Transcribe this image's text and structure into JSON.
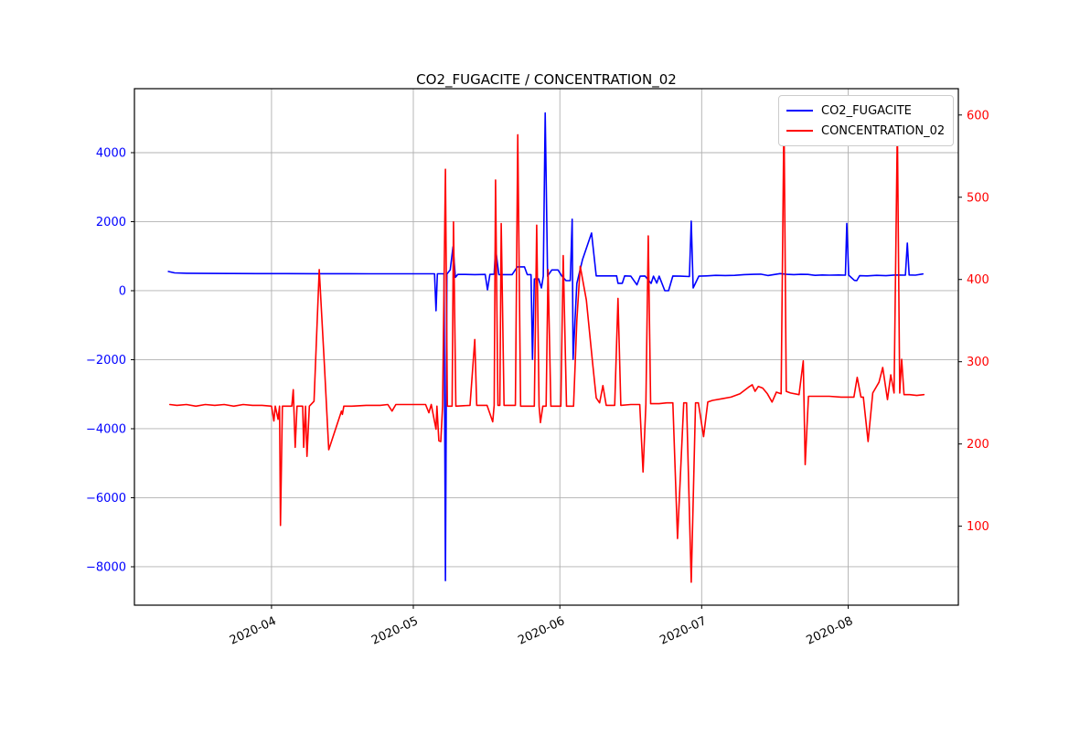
{
  "figure": {
    "title": "CO2_FUGACITE / CONCENTRATION_02",
    "background": "#ffffff"
  },
  "legend": {
    "items": [
      {
        "label": "CO2_FUGACITE",
        "color": "#0000ff"
      },
      {
        "label": "CONCENTRATION_02",
        "color": "#ff0000"
      }
    ]
  },
  "chart_data": {
    "type": "line",
    "title": "CO2_FUGACITE / CONCENTRATION_02",
    "grid": true,
    "grid_color": "#b0b0b0",
    "spine_color": "#000000",
    "legend_position": "upper right",
    "x_axis": {
      "unit": "days since 2020-03-01",
      "range": [
        2,
        176.3
      ],
      "ticks": [
        31,
        61,
        92,
        122,
        153
      ],
      "tick_labels": [
        "2020-04",
        "2020-05",
        "2020-06",
        "2020-07",
        "2020-08"
      ],
      "tick_label_color": "#000000",
      "tick_label_rotation_deg": -25
    },
    "y_axis_left": {
      "series": "CO2_FUGACITE",
      "color": "#0000ff",
      "range": [
        -9113,
        5854
      ],
      "ticks": [
        4000,
        2000,
        0,
        -2000,
        -4000,
        -6000,
        -8000
      ],
      "tick_labels": [
        "4000",
        "2000",
        "0",
        "−2000",
        "−4000",
        "−6000",
        "−8000"
      ]
    },
    "y_axis_right": {
      "series": "CONCENTRATION_02",
      "color": "#ff0000",
      "range": [
        4,
        632
      ],
      "ticks": [
        600,
        500,
        400,
        300,
        200,
        100
      ],
      "tick_labels": [
        "600",
        "500",
        "400",
        "300",
        "200",
        "100"
      ]
    },
    "series": [
      {
        "name": "CO2_FUGACITE",
        "color": "#0000ff",
        "axis": "left",
        "linewidth": 1.6,
        "points": [
          [
            9.2,
            555
          ],
          [
            10.5,
            515
          ],
          [
            13,
            505
          ],
          [
            17,
            500
          ],
          [
            22,
            497
          ],
          [
            28,
            495
          ],
          [
            34,
            494
          ],
          [
            40,
            493
          ],
          [
            46,
            492
          ],
          [
            52,
            491
          ],
          [
            58,
            490
          ],
          [
            63,
            490
          ],
          [
            65.5,
            490
          ],
          [
            65.8,
            -580
          ],
          [
            66.1,
            490
          ],
          [
            67.5,
            490
          ],
          [
            67.8,
            -8400
          ],
          [
            68.1,
            485
          ],
          [
            68.8,
            600
          ],
          [
            69.4,
            1270
          ],
          [
            69.9,
            390
          ],
          [
            70.4,
            470
          ],
          [
            72,
            470
          ],
          [
            74,
            465
          ],
          [
            76.2,
            470
          ],
          [
            76.7,
            25
          ],
          [
            77.2,
            470
          ],
          [
            78.1,
            480
          ],
          [
            78.4,
            1230
          ],
          [
            79.1,
            465
          ],
          [
            81.9,
            465
          ],
          [
            83,
            690
          ],
          [
            84.5,
            690
          ],
          [
            85.1,
            465
          ],
          [
            85.9,
            465
          ],
          [
            86.2,
            -1990
          ],
          [
            86.6,
            340
          ],
          [
            87.5,
            345
          ],
          [
            88.1,
            80
          ],
          [
            88.5,
            420
          ],
          [
            88.9,
            5150
          ],
          [
            89.4,
            420
          ],
          [
            90.3,
            600
          ],
          [
            91.6,
            600
          ],
          [
            92.4,
            430
          ],
          [
            93.3,
            290
          ],
          [
            94.2,
            290
          ],
          [
            94.6,
            2070
          ],
          [
            94.8,
            -1990
          ],
          [
            95.6,
            210
          ],
          [
            96.8,
            900
          ],
          [
            98.7,
            1670
          ],
          [
            99.7,
            430
          ],
          [
            101.5,
            430
          ],
          [
            103.2,
            430
          ],
          [
            104,
            430
          ],
          [
            104.3,
            215
          ],
          [
            105.2,
            215
          ],
          [
            105.7,
            430
          ],
          [
            107,
            420
          ],
          [
            108.3,
            170
          ],
          [
            109,
            420
          ],
          [
            110,
            425
          ],
          [
            111.3,
            212
          ],
          [
            111.8,
            420
          ],
          [
            112.5,
            220
          ],
          [
            113,
            420
          ],
          [
            114.2,
            0
          ],
          [
            115,
            0
          ],
          [
            115.9,
            425
          ],
          [
            117.5,
            420
          ],
          [
            119.4,
            410
          ],
          [
            119.8,
            2015
          ],
          [
            120.2,
            80
          ],
          [
            121.4,
            420
          ],
          [
            123,
            430
          ],
          [
            125,
            445
          ],
          [
            127,
            440
          ],
          [
            129,
            445
          ],
          [
            131,
            465
          ],
          [
            133,
            475
          ],
          [
            134.5,
            480
          ],
          [
            136,
            440
          ],
          [
            137.2,
            465
          ],
          [
            138.6,
            495
          ],
          [
            140,
            475
          ],
          [
            141.5,
            465
          ],
          [
            143,
            475
          ],
          [
            144.5,
            470
          ],
          [
            146,
            445
          ],
          [
            147.5,
            455
          ],
          [
            149,
            450
          ],
          [
            151,
            455
          ],
          [
            152.4,
            450
          ],
          [
            152.7,
            1950
          ],
          [
            153.1,
            450
          ],
          [
            154.3,
            300
          ],
          [
            154.8,
            290
          ],
          [
            155.4,
            435
          ],
          [
            157,
            430
          ],
          [
            159,
            445
          ],
          [
            161,
            435
          ],
          [
            163,
            455
          ],
          [
            165.1,
            450
          ],
          [
            165.5,
            1380
          ],
          [
            165.9,
            455
          ],
          [
            167.2,
            450
          ],
          [
            168.8,
            485
          ]
        ]
      },
      {
        "name": "CONCENTRATION_02",
        "color": "#ff0000",
        "axis": "right",
        "linewidth": 1.6,
        "points": [
          [
            9.5,
            248
          ],
          [
            11,
            247
          ],
          [
            13,
            248
          ],
          [
            15,
            246
          ],
          [
            17,
            248
          ],
          [
            19,
            247
          ],
          [
            21,
            248
          ],
          [
            23,
            246
          ],
          [
            25,
            248
          ],
          [
            27,
            247
          ],
          [
            29,
            247
          ],
          [
            31,
            246
          ],
          [
            31.5,
            228
          ],
          [
            31.8,
            246
          ],
          [
            32.4,
            230
          ],
          [
            32.7,
            246
          ],
          [
            32.9,
            101
          ],
          [
            33.3,
            246
          ],
          [
            35.3,
            246
          ],
          [
            35.6,
            266
          ],
          [
            36,
            196
          ],
          [
            36.4,
            246
          ],
          [
            37.6,
            246
          ],
          [
            37.8,
            196
          ],
          [
            38.2,
            246
          ],
          [
            38.5,
            185
          ],
          [
            39,
            246
          ],
          [
            40,
            252
          ],
          [
            41.1,
            412
          ],
          [
            42.2,
            295
          ],
          [
            43.1,
            193
          ],
          [
            45.8,
            240
          ],
          [
            46,
            236
          ],
          [
            46.3,
            246
          ],
          [
            48,
            246
          ],
          [
            51,
            247
          ],
          [
            54,
            247
          ],
          [
            55.6,
            248
          ],
          [
            56.5,
            240
          ],
          [
            57.3,
            248
          ],
          [
            60,
            248
          ],
          [
            63.6,
            248
          ],
          [
            64.3,
            238
          ],
          [
            64.8,
            248
          ],
          [
            65.8,
            218
          ],
          [
            66,
            246
          ],
          [
            66.4,
            204
          ],
          [
            66.8,
            203
          ],
          [
            67.2,
            246
          ],
          [
            67.8,
            534
          ],
          [
            68.2,
            246
          ],
          [
            69.2,
            246
          ],
          [
            69.5,
            470
          ],
          [
            70,
            246
          ],
          [
            73,
            247
          ],
          [
            74,
            327
          ],
          [
            74.4,
            247
          ],
          [
            76.6,
            247
          ],
          [
            77.8,
            227
          ],
          [
            78.1,
            247
          ],
          [
            78.4,
            521
          ],
          [
            78.9,
            247
          ],
          [
            79.3,
            247
          ],
          [
            79.6,
            468
          ],
          [
            80.2,
            247
          ],
          [
            82.6,
            247
          ],
          [
            83.1,
            576
          ],
          [
            83.7,
            246
          ],
          [
            86.6,
            246
          ],
          [
            87.1,
            466
          ],
          [
            87.6,
            246
          ],
          [
            87.9,
            226
          ],
          [
            88.4,
            246
          ],
          [
            89.1,
            246
          ],
          [
            89.5,
            412
          ],
          [
            90.1,
            246
          ],
          [
            91.7,
            246
          ],
          [
            92.2,
            246
          ],
          [
            92.7,
            429
          ],
          [
            93.4,
            246
          ],
          [
            94.9,
            246
          ],
          [
            95.6,
            350
          ],
          [
            96.3,
            416
          ],
          [
            97.6,
            375
          ],
          [
            98.9,
            300
          ],
          [
            99.7,
            256
          ],
          [
            100.4,
            250
          ],
          [
            101.1,
            271
          ],
          [
            101.8,
            247
          ],
          [
            103.6,
            247
          ],
          [
            104.3,
            377
          ],
          [
            104.9,
            247
          ],
          [
            107,
            248
          ],
          [
            108.9,
            248
          ],
          [
            109.6,
            166
          ],
          [
            110.2,
            248
          ],
          [
            110.7,
            453
          ],
          [
            111.2,
            249
          ],
          [
            113,
            249
          ],
          [
            114.6,
            250
          ],
          [
            115.9,
            250
          ],
          [
            116.9,
            85
          ],
          [
            118.2,
            250
          ],
          [
            118.8,
            250
          ],
          [
            119.8,
            32
          ],
          [
            120.7,
            250
          ],
          [
            121.3,
            250
          ],
          [
            122.4,
            209
          ],
          [
            123.3,
            251
          ],
          [
            124.3,
            253
          ],
          [
            126.3,
            255
          ],
          [
            128.2,
            257
          ],
          [
            130.1,
            261
          ],
          [
            131.9,
            269
          ],
          [
            132.7,
            272
          ],
          [
            133.3,
            264
          ],
          [
            134,
            270
          ],
          [
            134.9,
            268
          ],
          [
            135.9,
            261
          ],
          [
            136.9,
            251
          ],
          [
            137.8,
            263
          ],
          [
            138.8,
            261
          ],
          [
            139.4,
            600
          ],
          [
            139.9,
            264
          ],
          [
            140.8,
            262
          ],
          [
            142.6,
            260
          ],
          [
            143.5,
            301
          ],
          [
            143.9,
            175
          ],
          [
            144.6,
            258
          ],
          [
            146.5,
            258
          ],
          [
            149,
            258
          ],
          [
            151.5,
            257
          ],
          [
            154.2,
            257
          ],
          [
            154.9,
            281
          ],
          [
            155.7,
            257
          ],
          [
            156.2,
            257
          ],
          [
            157.2,
            203
          ],
          [
            158.2,
            262
          ],
          [
            159.5,
            275
          ],
          [
            160.3,
            293
          ],
          [
            161.3,
            254
          ],
          [
            162,
            284
          ],
          [
            162.7,
            262
          ],
          [
            163.4,
            585
          ],
          [
            163.9,
            262
          ],
          [
            164.3,
            303
          ],
          [
            164.8,
            260
          ],
          [
            166,
            260
          ],
          [
            167.5,
            259
          ],
          [
            169,
            260
          ]
        ]
      }
    ]
  }
}
